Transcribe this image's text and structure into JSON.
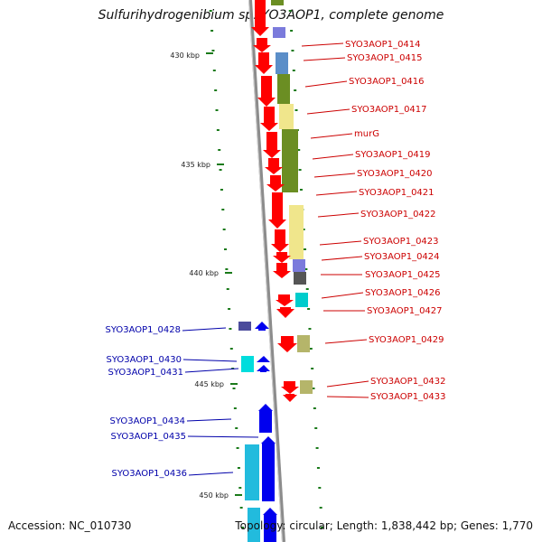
{
  "title": "Sulfurihydrogenibium sp. YO3AOP1, complete genome",
  "footer": {
    "accession": "Accession: NC_010730",
    "topology": "Topology: circular; Length: 1,838,442 bp; Genes: 1,770"
  },
  "colors": {
    "backbone": "#8c8c8c",
    "forward_label": "#cc0000",
    "reverse_label": "#0000aa",
    "tick": "#1a7a1a"
  },
  "scale": [
    "430 kbp",
    "435 kbp",
    "440 kbp",
    "445 kbp",
    "450 kbp"
  ],
  "genes_forward": [
    {
      "label": "SYO3AOP1_0414",
      "cog": "#7b7bdc"
    },
    {
      "label": "SYO3AOP1_0415",
      "cog": "#5b8ec8"
    },
    {
      "label": "SYO3AOP1_0416",
      "cog": "#6b8e23"
    },
    {
      "label": "SYO3AOP1_0417",
      "cog": "#f0e68c"
    },
    {
      "label": "murG",
      "cog": "#6b8e23"
    },
    {
      "label": "SYO3AOP1_0419",
      "cog": "#6b8e23"
    },
    {
      "label": "SYO3AOP1_0420",
      "cog": "#6b8e23"
    },
    {
      "label": "SYO3AOP1_0421",
      "cog": "#6b8e23"
    },
    {
      "label": "SYO3AOP1_0422",
      "cog": "#f0e68c"
    },
    {
      "label": "SYO3AOP1_0423",
      "cog": "#f0e68c"
    },
    {
      "label": "SYO3AOP1_0424",
      "cog": "#7b7bdc"
    },
    {
      "label": "SYO3AOP1_0425",
      "cog": "#555555"
    },
    {
      "label": "SYO3AOP1_0426",
      "cog": "#00cccc"
    },
    {
      "label": "SYO3AOP1_0427",
      "cog": ""
    },
    {
      "label": "SYO3AOP1_0429",
      "cog": "#b5b56a"
    },
    {
      "label": "SYO3AOP1_0432",
      "cog": "#b5b56a"
    },
    {
      "label": "SYO3AOP1_0433",
      "cog": ""
    }
  ],
  "genes_reverse": [
    {
      "label": "SYO3AOP1_0428",
      "cog": "#4b4b9c"
    },
    {
      "label": "SYO3AOP1_0430",
      "cog": "#00dddd"
    },
    {
      "label": "SYO3AOP1_0431",
      "cog": "#00dddd"
    },
    {
      "label": "SYO3AOP1_0434",
      "cog": "#0000cc"
    },
    {
      "label": "SYO3AOP1_0435",
      "cog": "#0000cc"
    },
    {
      "label": "SYO3AOP1_0436",
      "cog": "#22bbdd"
    }
  ]
}
